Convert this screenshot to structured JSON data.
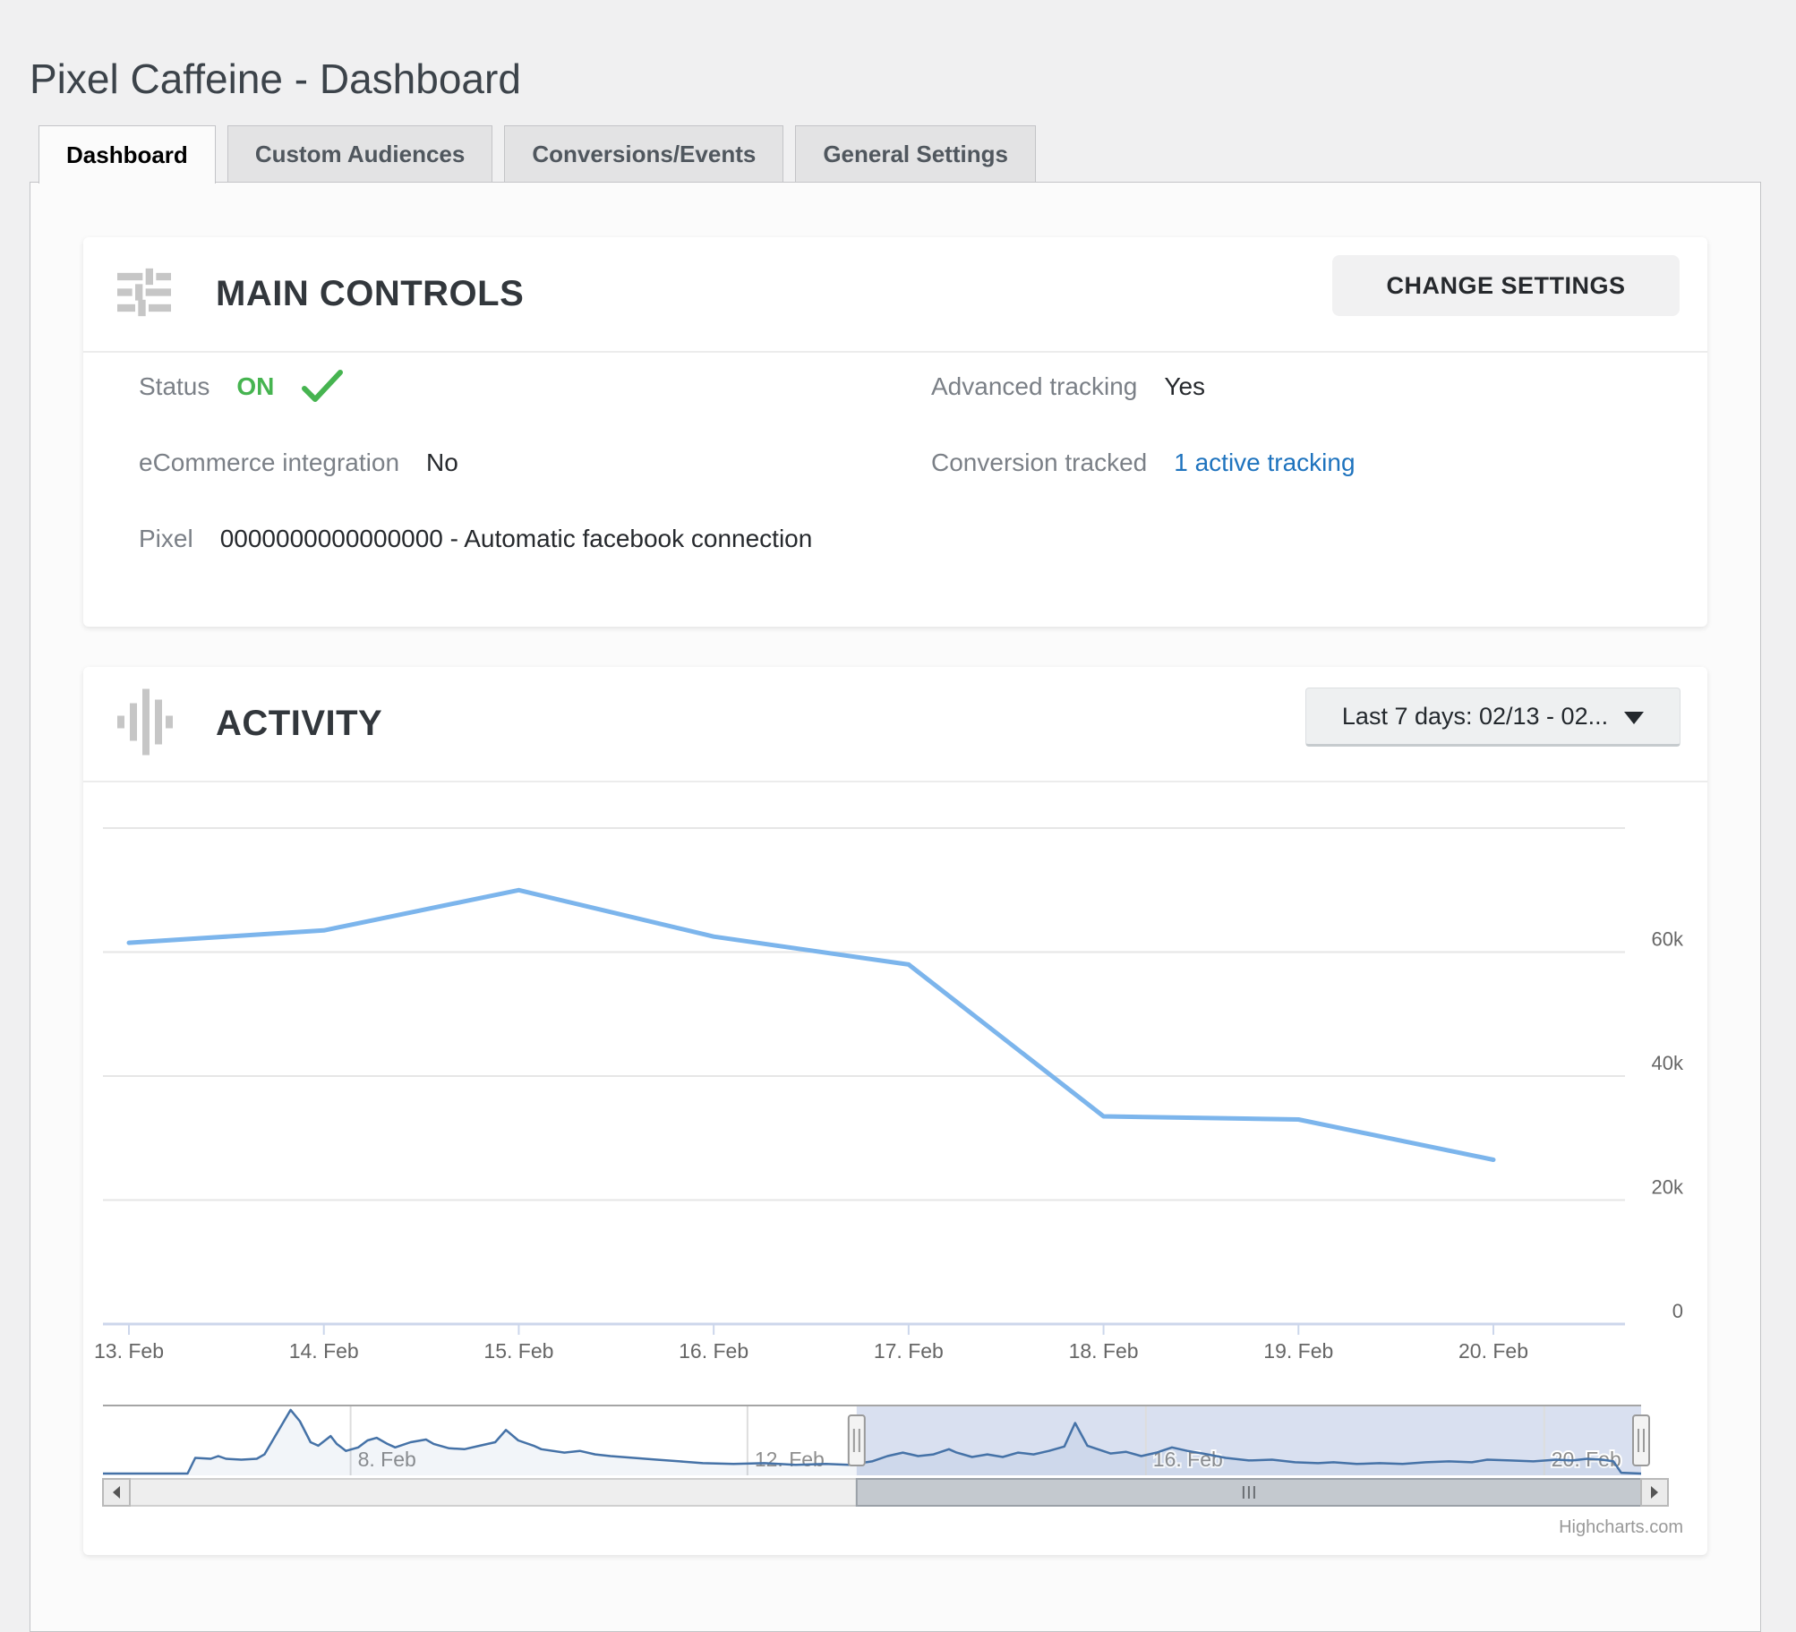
{
  "page": {
    "title": "Pixel Caffeine - Dashboard"
  },
  "tabs": [
    {
      "label": "Dashboard",
      "active": true
    },
    {
      "label": "Custom Audiences",
      "active": false
    },
    {
      "label": "Conversions/Events",
      "active": false
    },
    {
      "label": "General Settings",
      "active": false
    }
  ],
  "main_controls": {
    "title": "MAIN CONTROLS",
    "change_settings_label": "CHANGE SETTINGS",
    "fields": {
      "status": {
        "label": "Status",
        "value": "ON"
      },
      "advanced_tracking": {
        "label": "Advanced tracking",
        "value": "Yes"
      },
      "ecommerce": {
        "label": "eCommerce integration",
        "value": "No"
      },
      "conversion_tracked": {
        "label": "Conversion tracked",
        "value": "1 active tracking"
      },
      "pixel": {
        "label": "Pixel",
        "value": "0000000000000000 - Automatic facebook connection"
      }
    }
  },
  "activity": {
    "title": "ACTIVITY",
    "range_selector": "Last 7 days: 02/13 - 02...",
    "credits": "Highcharts.com"
  },
  "chart_data": {
    "type": "line",
    "title": "",
    "xlabel": "",
    "ylabel": "",
    "grid": true,
    "legend": false,
    "x": [
      "13. Feb",
      "14. Feb",
      "15. Feb",
      "16. Feb",
      "17. Feb",
      "18. Feb",
      "19. Feb",
      "20. Feb"
    ],
    "series": [
      {
        "name": "Activity",
        "color": "#7cb5ec",
        "values": [
          61500,
          63500,
          70000,
          62500,
          58000,
          33500,
          33000,
          26500
        ]
      }
    ],
    "ylim": [
      0,
      80000
    ],
    "yticks": [
      {
        "value": 80000,
        "label": ""
      },
      {
        "value": 60000,
        "label": "60k"
      },
      {
        "value": 40000,
        "label": "40k"
      },
      {
        "value": 20000,
        "label": "20k"
      },
      {
        "value": 0,
        "label": "0"
      }
    ],
    "navigator": {
      "color": "#4572a7",
      "mask_color": "rgba(102,133,194,0.25)",
      "selected_range": [
        0.49,
        1.0
      ],
      "xticks": [
        {
          "t": 0.161,
          "label": "8. Feb"
        },
        {
          "t": 0.419,
          "label": "12. Feb"
        },
        {
          "t": 0.678,
          "label": "16. Feb"
        },
        {
          "t": 0.937,
          "label": "20. Feb"
        }
      ],
      "vmax": 80,
      "series": [
        [
          0.0,
          2
        ],
        [
          0.055,
          2
        ],
        [
          0.06,
          20
        ],
        [
          0.07,
          19
        ],
        [
          0.075,
          22
        ],
        [
          0.08,
          19
        ],
        [
          0.09,
          18
        ],
        [
          0.1,
          19
        ],
        [
          0.105,
          24
        ],
        [
          0.112,
          45
        ],
        [
          0.122,
          75
        ],
        [
          0.128,
          62
        ],
        [
          0.135,
          38
        ],
        [
          0.14,
          34
        ],
        [
          0.148,
          45
        ],
        [
          0.152,
          36
        ],
        [
          0.158,
          28
        ],
        [
          0.166,
          32
        ],
        [
          0.172,
          40
        ],
        [
          0.178,
          43
        ],
        [
          0.185,
          36
        ],
        [
          0.19,
          32
        ],
        [
          0.2,
          38
        ],
        [
          0.21,
          41
        ],
        [
          0.215,
          36
        ],
        [
          0.225,
          31
        ],
        [
          0.235,
          30
        ],
        [
          0.245,
          34
        ],
        [
          0.255,
          38
        ],
        [
          0.262,
          52
        ],
        [
          0.27,
          40
        ],
        [
          0.28,
          34
        ],
        [
          0.285,
          30
        ],
        [
          0.3,
          26
        ],
        [
          0.31,
          28
        ],
        [
          0.32,
          24
        ],
        [
          0.33,
          22
        ],
        [
          0.345,
          20
        ],
        [
          0.36,
          18
        ],
        [
          0.375,
          16
        ],
        [
          0.39,
          14
        ],
        [
          0.41,
          13
        ],
        [
          0.43,
          14
        ],
        [
          0.45,
          12
        ],
        [
          0.47,
          13
        ],
        [
          0.485,
          12
        ],
        [
          0.5,
          16
        ],
        [
          0.51,
          22
        ],
        [
          0.52,
          26
        ],
        [
          0.53,
          22
        ],
        [
          0.54,
          24
        ],
        [
          0.55,
          30
        ],
        [
          0.555,
          26
        ],
        [
          0.565,
          21
        ],
        [
          0.575,
          24
        ],
        [
          0.585,
          21
        ],
        [
          0.595,
          26
        ],
        [
          0.605,
          24
        ],
        [
          0.615,
          28
        ],
        [
          0.625,
          33
        ],
        [
          0.632,
          60
        ],
        [
          0.64,
          34
        ],
        [
          0.65,
          28
        ],
        [
          0.655,
          25
        ],
        [
          0.665,
          27
        ],
        [
          0.675,
          22
        ],
        [
          0.685,
          26
        ],
        [
          0.695,
          32
        ],
        [
          0.705,
          28
        ],
        [
          0.715,
          25
        ],
        [
          0.73,
          20
        ],
        [
          0.745,
          17
        ],
        [
          0.76,
          18
        ],
        [
          0.775,
          15
        ],
        [
          0.79,
          14
        ],
        [
          0.8,
          15
        ],
        [
          0.815,
          13
        ],
        [
          0.83,
          14
        ],
        [
          0.845,
          13
        ],
        [
          0.86,
          15
        ],
        [
          0.875,
          16
        ],
        [
          0.89,
          15
        ],
        [
          0.9,
          18
        ],
        [
          0.915,
          17
        ],
        [
          0.93,
          16
        ],
        [
          0.945,
          18
        ],
        [
          0.955,
          17
        ],
        [
          0.965,
          19
        ],
        [
          0.975,
          18
        ],
        [
          0.982,
          16
        ],
        [
          0.987,
          3
        ],
        [
          1.0,
          2
        ]
      ]
    }
  }
}
